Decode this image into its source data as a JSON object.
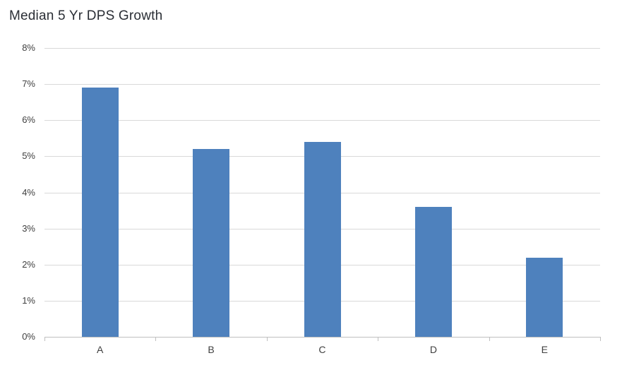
{
  "chart_data": {
    "type": "bar",
    "title": "Median 5 Yr DPS Growth",
    "categories": [
      "A",
      "B",
      "C",
      "D",
      "E"
    ],
    "values": [
      6.9,
      5.2,
      5.4,
      3.6,
      2.2
    ],
    "unit": "%",
    "xlabel": "",
    "ylabel": "",
    "ylim": [
      0,
      8
    ],
    "ytick_step": 1,
    "ytick_labels": [
      "0%",
      "1%",
      "2%",
      "3%",
      "4%",
      "5%",
      "6%",
      "7%",
      "8%"
    ],
    "grid": true,
    "legend": false,
    "colors": {
      "bar": "#4e81bd",
      "gridline": "#d9d9d9",
      "axis": "#bfbfbf",
      "tick_label": "#404040",
      "title": "#2a2e35"
    }
  }
}
